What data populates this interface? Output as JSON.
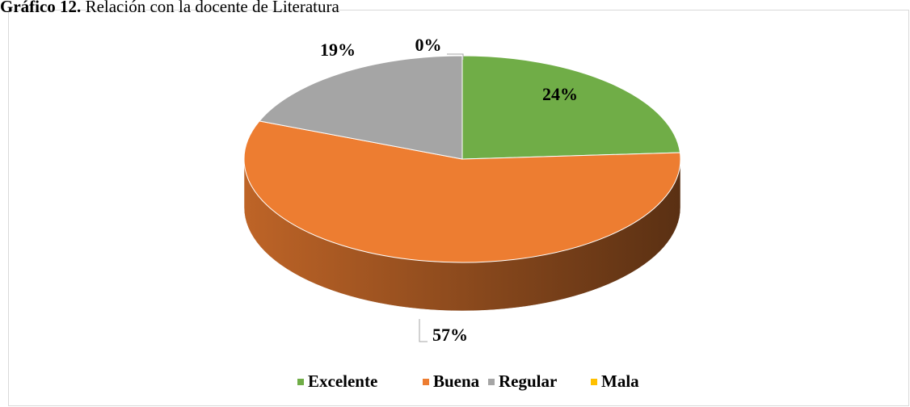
{
  "chart_data": {
    "type": "pie3d",
    "title_label": "Gráfico 12.",
    "title": "Relación con la docente de Literatura",
    "categories": [
      "Excelente",
      "Buena",
      "Regular",
      "Mala"
    ],
    "values": [
      24,
      57,
      19,
      0
    ],
    "value_labels": [
      "24%",
      "57%",
      "19%",
      "0%"
    ],
    "colors": [
      "#70ad47",
      "#ed7d31",
      "#a5a5a5",
      "#ffc000"
    ],
    "legend": "bottom"
  }
}
